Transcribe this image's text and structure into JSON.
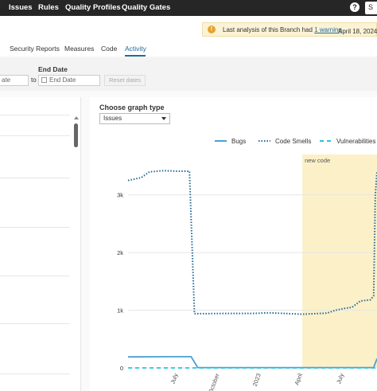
{
  "nav": {
    "items": [
      "Issues",
      "Rules",
      "Quality Profiles",
      "Quality Gates"
    ],
    "help_label": "?",
    "search_hint": "S"
  },
  "warning": {
    "text": "Last analysis of this Branch had",
    "link": "1 warning",
    "date": "April 18, 2024 a"
  },
  "tabs": {
    "items": [
      "Security Reports",
      "Measures",
      "Code",
      "Activity"
    ],
    "active": "Activity"
  },
  "filters": {
    "start_value": "ate",
    "to_label": "to",
    "end_label": "End Date",
    "end_placeholder": "End Date",
    "reset_label": "Reset dates"
  },
  "graph": {
    "title": "Choose graph type",
    "selected": "Issues"
  },
  "chart_data": {
    "type": "line",
    "legend": [
      "Bugs",
      "Code Smells",
      "Vulnerabilities"
    ],
    "legend_position": "top-right",
    "y_ticks": [
      "3k",
      "2k",
      "1k",
      "0"
    ],
    "ylim": [
      0,
      3700
    ],
    "x_ticks": [
      "July",
      "October",
      "2023",
      "April",
      "July"
    ],
    "new_code_label": "new code",
    "new_code_start": 2023.25,
    "xlim": [
      2022.2,
      2023.7
    ],
    "series": [
      {
        "name": "Bugs",
        "style": "solid",
        "color": "#4b9fd5",
        "x": [
          2022.2,
          2022.45,
          2022.58,
          2022.62,
          2023.68,
          2023.7
        ],
        "y": [
          190,
          195,
          195,
          5,
          5,
          160
        ]
      },
      {
        "name": "Code Smells",
        "style": "dotted",
        "color": "#236a97",
        "x": [
          2022.2,
          2022.28,
          2022.33,
          2022.42,
          2022.5,
          2022.57,
          2022.6,
          2022.65,
          2022.8,
          2022.95,
          2023.05,
          2023.25,
          2023.4,
          2023.45,
          2023.5,
          2023.55,
          2023.6,
          2023.66,
          2023.68,
          2023.69,
          2023.7
        ],
        "y": [
          3250,
          3300,
          3400,
          3420,
          3410,
          3410,
          940,
          940,
          945,
          945,
          955,
          930,
          950,
          1000,
          1030,
          1050,
          1160,
          1180,
          1250,
          3000,
          3400
        ]
      },
      {
        "name": "Vulnerabilities",
        "style": "dashed",
        "color": "#24c6e0",
        "x": [
          2022.2,
          2023.7
        ],
        "y": [
          0,
          0
        ]
      }
    ]
  }
}
